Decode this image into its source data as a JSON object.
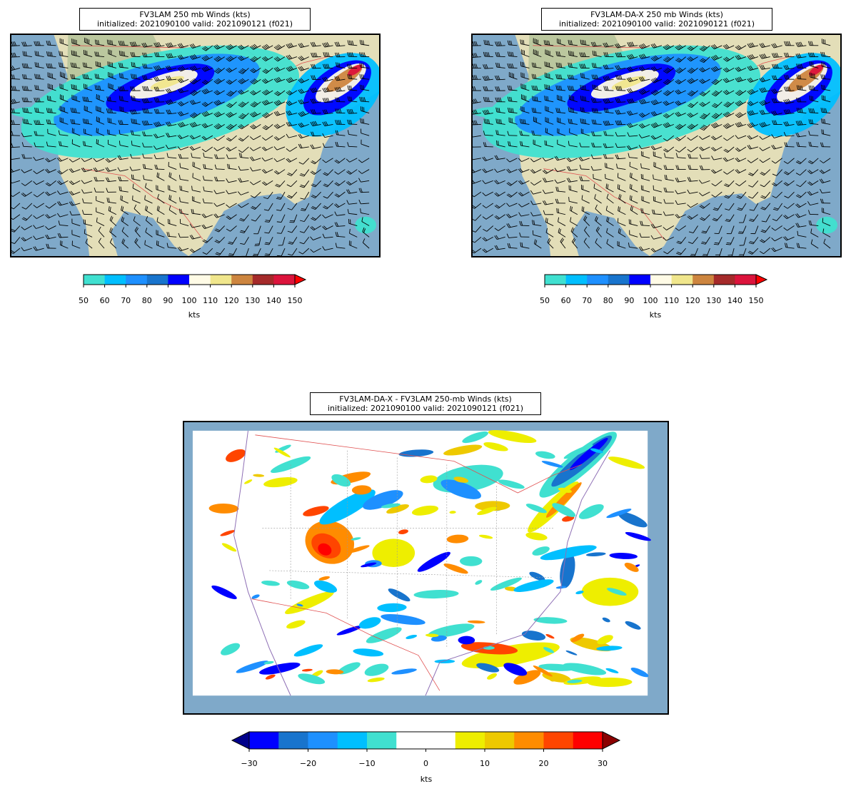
{
  "panels": {
    "left": {
      "title_line1": "FV3LAM 250 mb Winds (kts)",
      "title_line2": "initialized: 2021090100 valid: 2021090121 (f021)"
    },
    "right": {
      "title_line1": "FV3LAM-DA-X 250 mb Winds (kts)",
      "title_line2": "initialized: 2021090100 valid: 2021090121 (f021)"
    },
    "bottom": {
      "title_line1": "FV3LAM-DA-X - FV3LAM 250-mb Winds (kts)",
      "title_line2": "initialized: 2021090100 valid: 2021090121 (f021)"
    }
  },
  "colorbars": {
    "speed": {
      "ticks": [
        "50",
        "60",
        "70",
        "80",
        "90",
        "100",
        "110",
        "120",
        "130",
        "140",
        "150"
      ],
      "colors": [
        "#40e0d0",
        "#00bfff",
        "#1e90ff",
        "#1874cd",
        "#0000ff",
        "#fffbe6",
        "#f0e68c",
        "#cd853f",
        "#a52a2a",
        "#dc143c"
      ],
      "extend_color": "#ff0000",
      "label": "kts"
    },
    "diff": {
      "ticks": [
        "−30",
        "−20",
        "−10",
        "0",
        "10",
        "20",
        "30"
      ],
      "colors": [
        "#0000ff",
        "#1874cd",
        "#1e90ff",
        "#00bfff",
        "#40e0d0",
        "#ffffff",
        "#ffffff",
        "#eeee00",
        "#eec900",
        "#ff8c00",
        "#ff4500",
        "#ff0000"
      ],
      "extend_low_color": "#00008b",
      "extend_high_color": "#8b0000",
      "label": "kts"
    }
  },
  "map_colors": {
    "ocean": "#7fa9c9",
    "land": "#e3deb8",
    "land_green": "#a9bd93",
    "border_country": "#e05050",
    "border_state": "#888888",
    "coast": "#8e6fb5"
  }
}
